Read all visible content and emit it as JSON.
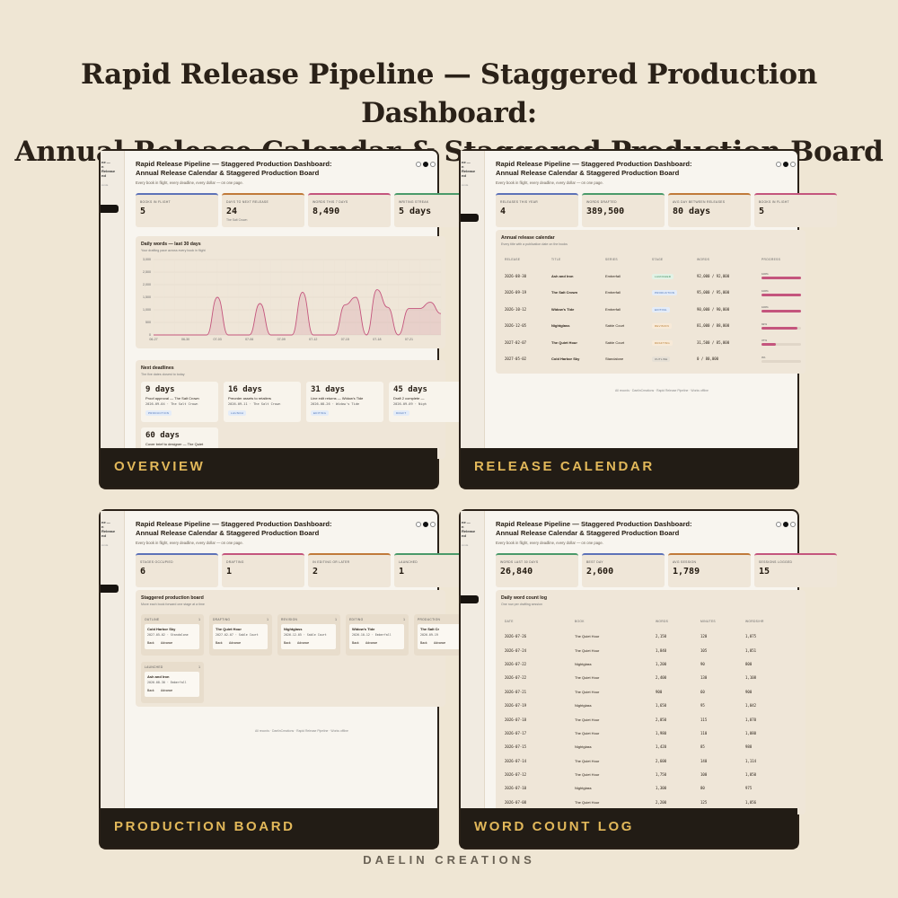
{
  "headline": {
    "line1": "Rapid Release Pipeline — Staggered Production Dashboard:",
    "line2": "Annual Release Calendar & Staggered Production Board"
  },
  "brand": "DAELIN CREATIONS",
  "app": {
    "title_line1": "Rapid Release Pipeline — Staggered Production Dashboard:",
    "title_line2": "Annual Release Calendar & Staggered Production Board",
    "subtitle": "Every book in flight, every deadline, every dollar — on one page."
  },
  "colors": {
    "accent_pink": "#c4557d",
    "caption_gold": "#e2b85a",
    "dark": "#221c15"
  },
  "overview": {
    "caption": "OVERVIEW",
    "stats": [
      {
        "label": "BOOKS IN FLIGHT",
        "value": "5",
        "sub": "",
        "color": "#5d72b8"
      },
      {
        "label": "DAYS TO NEXT RELEASE",
        "value": "24",
        "sub": "The Salt Crown",
        "color": "#c07a3a"
      },
      {
        "label": "WORDS THIS 7 DAYS",
        "value": "8,490",
        "sub": "",
        "color": "#c4557d"
      },
      {
        "label": "WRITING STREAK",
        "value": "5 days",
        "sub": "",
        "color": "#4a9a6a"
      }
    ],
    "chart_card": {
      "title": "Daily words — last 30 days",
      "subtitle": "Your drafting pace across every book in flight"
    },
    "deadlines": {
      "title": "Next deadlines",
      "subtitle": "The five dates closest to today",
      "items": [
        {
          "days": "9 days",
          "task": "Proof approval — The Salt Crown",
          "date": "2026-09-04 · The Salt Crown",
          "tag": "PRODUCTION"
        },
        {
          "days": "16 days",
          "task": "Preorder assets to retailers",
          "date": "2026-09-11 · The Salt Crown",
          "tag": "LAUNCH"
        },
        {
          "days": "31 days",
          "task": "Line edit returns — Widow's Tide",
          "date": "2026-08-26 · Widow's Tide",
          "tag": "EDITING"
        },
        {
          "days": "45 days",
          "task": "Draft 2 complete —",
          "date": "2026-09-09 · Nigh",
          "tag": "DRAFT"
        },
        {
          "days": "60 days",
          "task": "Cover brief to designer — The Quiet",
          "date": "",
          "tag": ""
        }
      ]
    }
  },
  "chart_data": {
    "type": "area",
    "title": "Daily words — last 30 days",
    "subtitle": "Your drafting pace across every book in flight",
    "xlabel": "",
    "ylabel": "",
    "x": [
      "06-27",
      "06-28",
      "06-29",
      "06-30",
      "07-01",
      "07-02",
      "07-03",
      "07-04",
      "07-05",
      "07-06",
      "07-07",
      "07-08",
      "07-09",
      "07-10",
      "07-11",
      "07-12",
      "07-13",
      "07-14",
      "07-15",
      "07-16",
      "07-17",
      "07-18",
      "07-19",
      "07-20",
      "07-21",
      "07-22",
      "07-23",
      "07-24"
    ],
    "xticks": [
      "06-27",
      "06-30",
      "07-03",
      "07-06",
      "07-09",
      "07-12",
      "07-15",
      "07-18",
      "07-21"
    ],
    "values": [
      0,
      0,
      0,
      0,
      0,
      0,
      1500,
      0,
      0,
      0,
      1250,
      0,
      0,
      0,
      1700,
      0,
      0,
      0,
      1200,
      1500,
      0,
      1800,
      1100,
      0,
      1050,
      1050,
      1300,
      850
    ],
    "ylim": [
      0,
      3000
    ],
    "yticks": [
      "0",
      "500",
      "1,000",
      "1,500",
      "2,000",
      "2,500",
      "3,000"
    ],
    "grid": true,
    "color": "#c4557d"
  },
  "release_calendar": {
    "caption": "RELEASE CALENDAR",
    "stats": [
      {
        "label": "RELEASES THIS YEAR",
        "value": "4",
        "color": "#5d72b8"
      },
      {
        "label": "WORDS DRAFTED",
        "value": "389,500",
        "color": "#4a9a6a"
      },
      {
        "label": "AVG DAY BETWEEN RELEASES",
        "value": "80 days",
        "color": "#c07a3a"
      },
      {
        "label": "BOOKS IN FLIGHT",
        "value": "5",
        "color": "#c4557d"
      }
    ],
    "table_title": "Annual release calendar",
    "table_sub": "Every title with a publication date on the books",
    "headers": [
      "RELEASE",
      "TITLE",
      "SERIES",
      "STAGE",
      "WORDS",
      "PROGRESS"
    ],
    "rows": [
      {
        "release": "2026-08-30",
        "title": "Ash and Iron",
        "series": "Emberfall",
        "stage": "LAUNCHED",
        "stage_bg": "#e2f2e6",
        "stage_fg": "#3b8a57",
        "words": "92,000 / 92,000",
        "progress": 100,
        "pct": "100%"
      },
      {
        "release": "2026-09-19",
        "title": "The Salt Crown",
        "series": "Emberfall",
        "stage": "PRODUCTION",
        "stage_bg": "#e4ecf8",
        "stage_fg": "#4a73b8",
        "words": "95,000 / 95,000",
        "progress": 100,
        "pct": "100%"
      },
      {
        "release": "2026-10-12",
        "title": "Widow's Tide",
        "series": "Emberfall",
        "stage": "EDITING",
        "stage_bg": "#e4ecf8",
        "stage_fg": "#4a73b8",
        "words": "90,000 / 90,000",
        "progress": 100,
        "pct": "100%"
      },
      {
        "release": "2026-12-05",
        "title": "Nightglass",
        "series": "Sable Court",
        "stage": "REVISION",
        "stage_bg": "#f8ead8",
        "stage_fg": "#b77a2c",
        "words": "81,000 / 88,000",
        "progress": 92,
        "pct": "92%"
      },
      {
        "release": "2027-02-07",
        "title": "The Quiet Hour",
        "series": "Sable Court",
        "stage": "DRAFTING",
        "stage_bg": "#f8ead8",
        "stage_fg": "#b77a2c",
        "words": "31,500 / 85,000",
        "progress": 37,
        "pct": "37%"
      },
      {
        "release": "2027-05-02",
        "title": "Cold Harbor Sky",
        "series": "Standalone",
        "stage": "OUTLINE",
        "stage_bg": "#e6e0d6",
        "stage_fg": "#666666",
        "words": "0 / 80,000",
        "progress": 0,
        "pct": "0%"
      }
    ],
    "footer": "All records · DaelinCreations · Rapid Release Pipeline · Works offline"
  },
  "production_board": {
    "caption": "PRODUCTION BOARD",
    "stats": [
      {
        "label": "STAGES OCCUPIED",
        "value": "6",
        "color": "#5d72b8"
      },
      {
        "label": "DRAFTING",
        "value": "1",
        "color": "#c4557d"
      },
      {
        "label": "IN EDITING OR LATER",
        "value": "2",
        "color": "#c07a3a"
      },
      {
        "label": "LAUNCHED",
        "value": "1",
        "color": "#4a9a6a"
      }
    ],
    "board_title": "Staggered production board",
    "board_sub": "Move each book forward one stage at a time",
    "columns": [
      {
        "name": "OUTLINE",
        "count": "1",
        "title": "Cold Harbor Sky",
        "meta": "2027-05-02 · Standalone"
      },
      {
        "name": "DRAFTING",
        "count": "1",
        "title": "The Quiet Hour",
        "meta": "2027-02-07 · Sable Court"
      },
      {
        "name": "REVISION",
        "count": "1",
        "title": "Nightglass",
        "meta": "2026-12-05 · Sable Court"
      },
      {
        "name": "EDITING",
        "count": "1",
        "title": "Widow's Tide",
        "meta": "2026-10-12 · Emberfall"
      },
      {
        "name": "PRODUCTION",
        "count": "1",
        "title": "The Salt Cr",
        "meta": "2026-09-19"
      },
      {
        "name": "LAUNCHED",
        "count": "1",
        "title": "Ash and Iron",
        "meta": "2026-08-30 · Emberfall"
      }
    ],
    "back_label": "Back",
    "advance_label": "Advance",
    "footer": "All records · DaelinCreations · Rapid Release Pipeline · Works offline"
  },
  "word_count_log": {
    "caption": "WORD COUNT LOG",
    "stats": [
      {
        "label": "WORDS LAST 30 DAYS",
        "value": "26,840",
        "color": "#4a9a6a"
      },
      {
        "label": "BEST DAY",
        "value": "2,600",
        "color": "#5d72b8"
      },
      {
        "label": "AVG SESSION",
        "value": "1,789",
        "color": "#c07a3a"
      },
      {
        "label": "SESSIONS LOGGED",
        "value": "15",
        "color": "#c4557d"
      }
    ],
    "table_title": "Daily word count log",
    "table_sub": "One row per drafting session",
    "headers": [
      "DATE",
      "BOOK",
      "WORDS",
      "MINUTES",
      "WORDS/HR"
    ],
    "rows": [
      [
        "2026-07-26",
        "The Quiet Hour",
        "2,150",
        "120",
        "1,075"
      ],
      [
        "2026-07-24",
        "The Quiet Hour",
        "1,840",
        "105",
        "1,051"
      ],
      [
        "2026-07-22",
        "Nightglass",
        "1,200",
        "90",
        "800"
      ],
      [
        "2026-07-22",
        "The Quiet Hour",
        "2,400",
        "130",
        "1,108"
      ],
      [
        "2026-07-21",
        "The Quiet Hour",
        "900",
        "60",
        "900"
      ],
      [
        "2026-07-19",
        "Nightglass",
        "1,650",
        "95",
        "1,042"
      ],
      [
        "2026-07-18",
        "The Quiet Hour",
        "2,050",
        "115",
        "1,070"
      ],
      [
        "2026-07-17",
        "The Quiet Hour",
        "1,980",
        "110",
        "1,080"
      ],
      [
        "2026-07-15",
        "Nightglass",
        "1,420",
        "85",
        "988"
      ],
      [
        "2026-07-14",
        "The Quiet Hour",
        "2,600",
        "140",
        "1,114"
      ],
      [
        "2026-07-12",
        "The Quiet Hour",
        "1,750",
        "100",
        "1,050"
      ],
      [
        "2026-07-10",
        "Nightglass",
        "1,300",
        "80",
        "975"
      ],
      [
        "2026-07-08",
        "The Quiet Hour",
        "2,200",
        "125",
        "1,056"
      ]
    ]
  }
}
